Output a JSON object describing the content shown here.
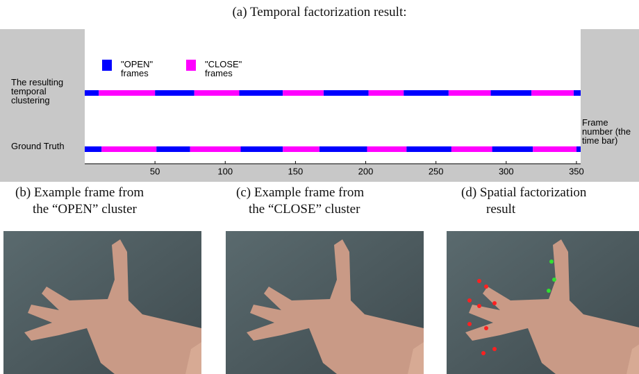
{
  "captions": {
    "a": "(a) Temporal factorization result:",
    "b": [
      "(b) Example frame from",
      "the “OPEN” cluster"
    ],
    "c": [
      "(c) Example frame from",
      "the “CLOSE” cluster"
    ],
    "d": [
      "(d) Spatial factorization",
      "result"
    ]
  },
  "chart_data": {
    "type": "timeline",
    "xlim": [
      0,
      353
    ],
    "xticks": [
      50,
      100,
      150,
      200,
      250,
      300,
      350
    ],
    "xlabel": "Frame number (the time bar)",
    "series": [
      {
        "name": "\"OPEN\" frames",
        "color": "#0000ff"
      },
      {
        "name": "\"CLOSE\" frames",
        "color": "#ff00ff"
      }
    ],
    "rows": [
      {
        "label": "The resulting temporal clustering",
        "segments": [
          [
            [
              0,
              10
            ],
            [
              50,
              78
            ],
            [
              110,
              141
            ],
            [
              170,
              202
            ],
            [
              227,
              259
            ],
            [
              289,
              318
            ],
            [
              348,
              353
            ]
          ],
          [
            [
              10,
              50
            ],
            [
              78,
              110
            ],
            [
              141,
              170
            ],
            [
              202,
              227
            ],
            [
              259,
              289
            ],
            [
              318,
              348
            ]
          ]
        ]
      },
      {
        "label": "Ground Truth",
        "segments": [
          [
            [
              0,
              12
            ],
            [
              51,
              75
            ],
            [
              111,
              141
            ],
            [
              167,
              201
            ],
            [
              229,
              261
            ],
            [
              290,
              319
            ],
            [
              350,
              353
            ]
          ],
          [
            [
              12,
              51
            ],
            [
              75,
              111
            ],
            [
              141,
              167
            ],
            [
              201,
              229
            ],
            [
              261,
              290
            ],
            [
              319,
              350
            ]
          ]
        ]
      }
    ]
  }
}
